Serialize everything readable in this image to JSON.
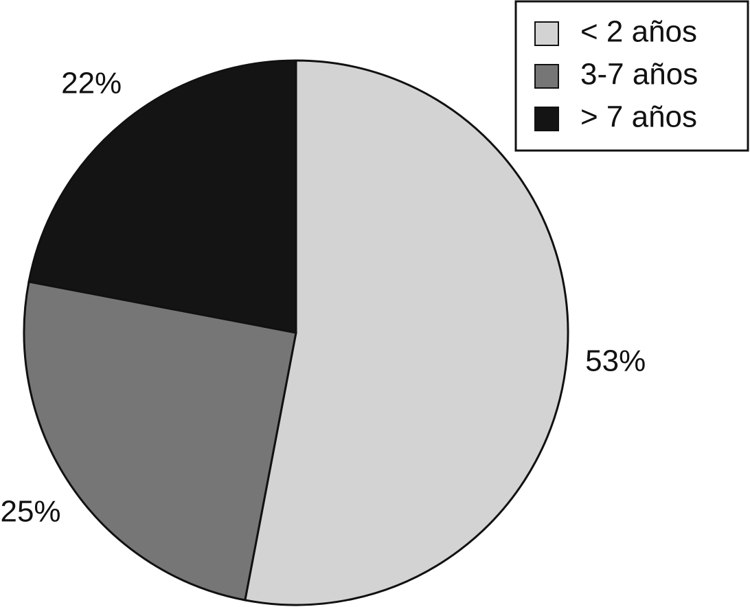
{
  "chart_data": {
    "type": "pie",
    "categories": [
      "< 2 años",
      "3-7 años",
      "> 7 años"
    ],
    "values": [
      53,
      25,
      22
    ],
    "value_labels": [
      "53%",
      "25%",
      "22%"
    ],
    "colors": [
      "#d3d3d3",
      "#767676",
      "#141414"
    ],
    "legend": "top-right"
  }
}
